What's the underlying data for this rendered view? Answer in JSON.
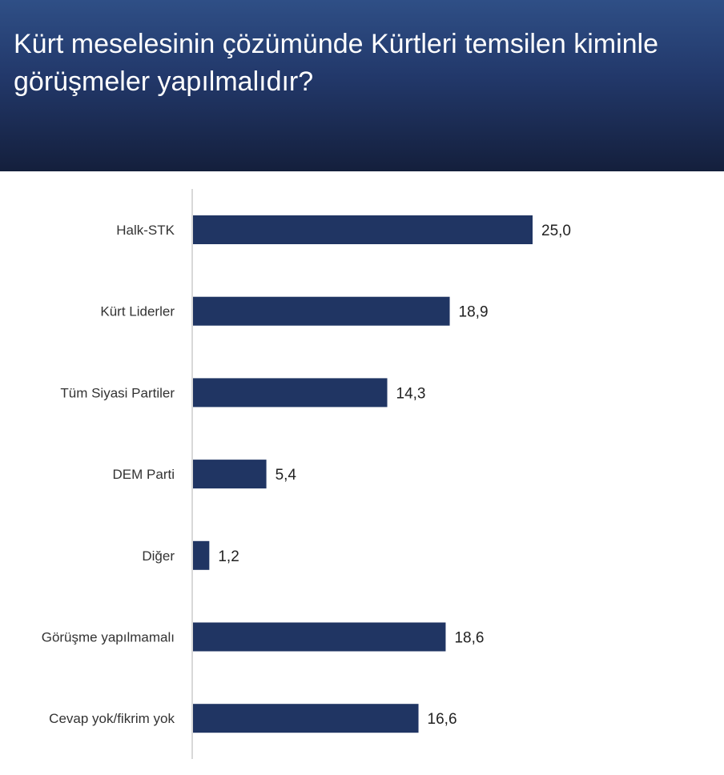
{
  "header": {
    "title": "Kürt meselesinin çözümünde Kürtleri temsilen kiminle görüşmeler yapılmalıdır?"
  },
  "colors": {
    "bar": "#203563",
    "axis": "#cccccc"
  },
  "chart_data": {
    "type": "bar",
    "orientation": "horizontal",
    "title": "Kürt meselesinin çözümünde Kürtleri temsilen kiminle görüşmeler yapılmalıdır?",
    "categories": [
      "Halk-STK",
      "Kürt Liderler",
      "Tüm Siyasi Partiler",
      "DEM Parti",
      "Diğer",
      "Görüşme yapılmamalı",
      "Cevap yok/fikrim yok"
    ],
    "values": [
      25.0,
      18.9,
      14.3,
      5.4,
      1.2,
      18.6,
      16.6
    ],
    "value_labels": [
      "25,0",
      "18,9",
      "14,3",
      "5,4",
      "1,2",
      "18,6",
      "16,6"
    ],
    "xlabel": "",
    "ylabel": "",
    "xlim": [
      0,
      25
    ],
    "grid": false
  }
}
